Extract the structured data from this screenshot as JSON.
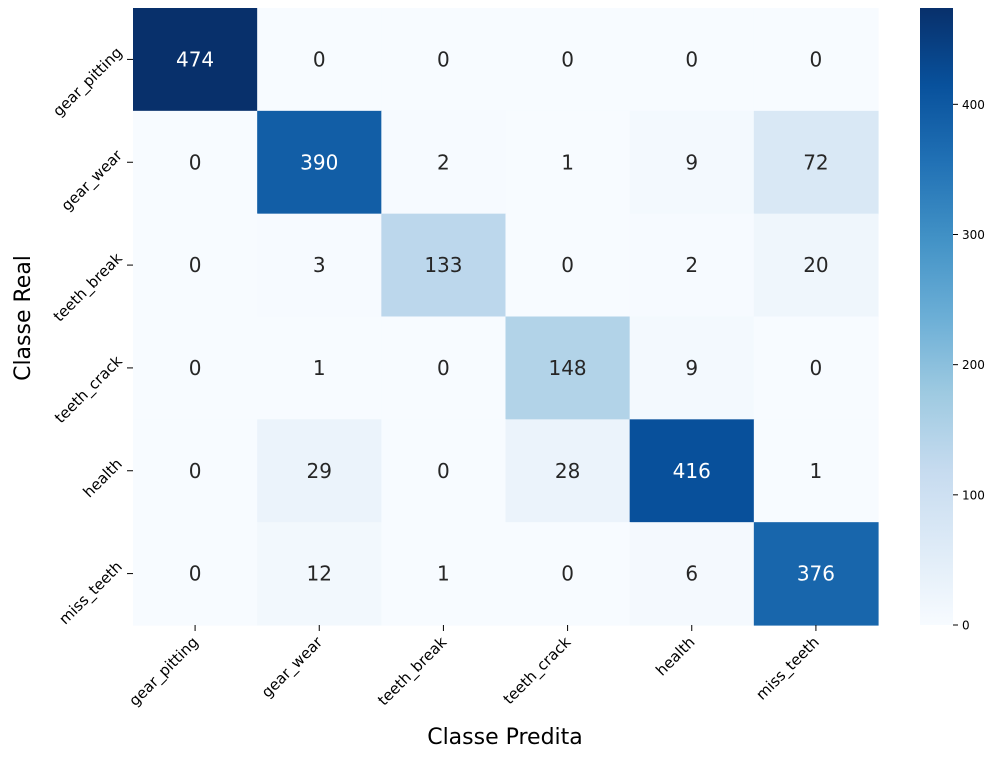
{
  "chart_data": {
    "type": "heatmap",
    "title": "",
    "xlabel": "Classe Predita",
    "ylabel": "Classe Real",
    "x_categories": [
      "gear_pitting",
      "gear_wear",
      "teeth_break",
      "teeth_crack",
      "health",
      "miss_teeth"
    ],
    "y_categories": [
      "gear_pitting",
      "gear_wear",
      "teeth_break",
      "teeth_crack",
      "health",
      "miss_teeth"
    ],
    "values": [
      [
        474,
        0,
        0,
        0,
        0,
        0
      ],
      [
        0,
        390,
        2,
        1,
        9,
        72
      ],
      [
        0,
        3,
        133,
        0,
        2,
        20
      ],
      [
        0,
        1,
        0,
        148,
        9,
        0
      ],
      [
        0,
        29,
        0,
        28,
        416,
        1
      ],
      [
        0,
        12,
        1,
        0,
        6,
        376
      ]
    ],
    "colorscale": "Blues",
    "vmin": 0,
    "vmax": 474,
    "colorbar_ticks": [
      0,
      100,
      200,
      300,
      400
    ]
  }
}
